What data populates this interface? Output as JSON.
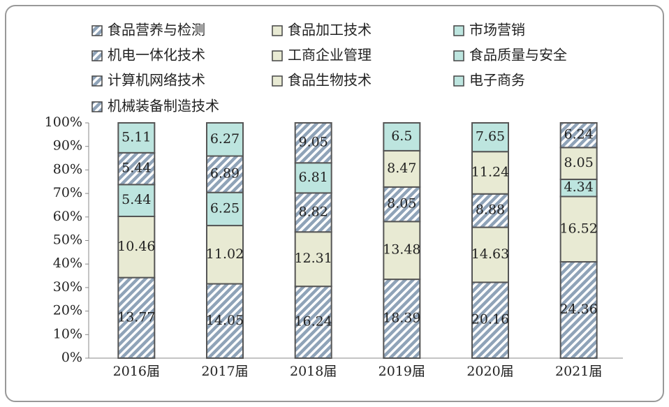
{
  "chart_data": {
    "type": "bar",
    "stacking": "percent",
    "categories": [
      "2016届",
      "2017届",
      "2018届",
      "2019届",
      "2020届",
      "2021届"
    ],
    "series": [
      {
        "name": "食品营养与检测",
        "color": "#8fa3b8",
        "hatch": true,
        "values": [
          13.77,
          14.05,
          16.24,
          18.39,
          20.16,
          24.36
        ]
      },
      {
        "name": "食品加工技术",
        "color": "#e8ead3",
        "hatch": false,
        "values": [
          10.46,
          11.02,
          12.31,
          13.48,
          14.63,
          16.52
        ]
      },
      {
        "name": "市场营销",
        "color": "#bde5df",
        "hatch": false,
        "values": [
          5.44,
          6.25,
          null,
          null,
          null,
          4.34
        ]
      },
      {
        "name": "机电一体化技术",
        "color": "#8fa3b8",
        "hatch": true,
        "values": [
          5.44,
          6.89,
          8.82,
          8.05,
          8.88,
          null
        ]
      },
      {
        "name": "工商企业管理",
        "color": "#e8ead3",
        "hatch": false,
        "values": [
          null,
          null,
          null,
          8.47,
          11.24,
          8.05
        ]
      },
      {
        "name": "食品质量与安全",
        "color": "#bde5df",
        "hatch": false,
        "values": [
          5.11,
          6.27,
          6.81,
          6.5,
          7.65,
          null
        ]
      },
      {
        "name": "计算机网络技术",
        "color": "#8fa3b8",
        "hatch": true,
        "values": [
          null,
          null,
          9.05,
          null,
          null,
          6.24
        ]
      },
      {
        "name": "食品生物技术",
        "color": "#e8ead3",
        "hatch": false,
        "values": [
          null,
          null,
          null,
          null,
          null,
          null
        ]
      },
      {
        "name": "电子商务",
        "color": "#bde5df",
        "hatch": false,
        "values": [
          null,
          null,
          null,
          null,
          null,
          null
        ]
      },
      {
        "name": "机械装备制造技术",
        "color": "#8fa3b8",
        "hatch": true,
        "values": [
          null,
          null,
          null,
          null,
          null,
          null
        ]
      }
    ],
    "ylim": [
      0,
      100
    ],
    "yticks": [
      {
        "value": 0,
        "label": "0%"
      },
      {
        "value": 10,
        "label": "10%"
      },
      {
        "value": 20,
        "label": "20%"
      },
      {
        "value": 30,
        "label": "30%"
      },
      {
        "value": 40,
        "label": "40%"
      },
      {
        "value": 50,
        "label": "50%"
      },
      {
        "value": 60,
        "label": "60%"
      },
      {
        "value": 70,
        "label": "70%"
      },
      {
        "value": 80,
        "label": "80%"
      },
      {
        "value": 90,
        "label": "90%"
      },
      {
        "value": 100,
        "label": "100%"
      }
    ],
    "legend": "top"
  }
}
